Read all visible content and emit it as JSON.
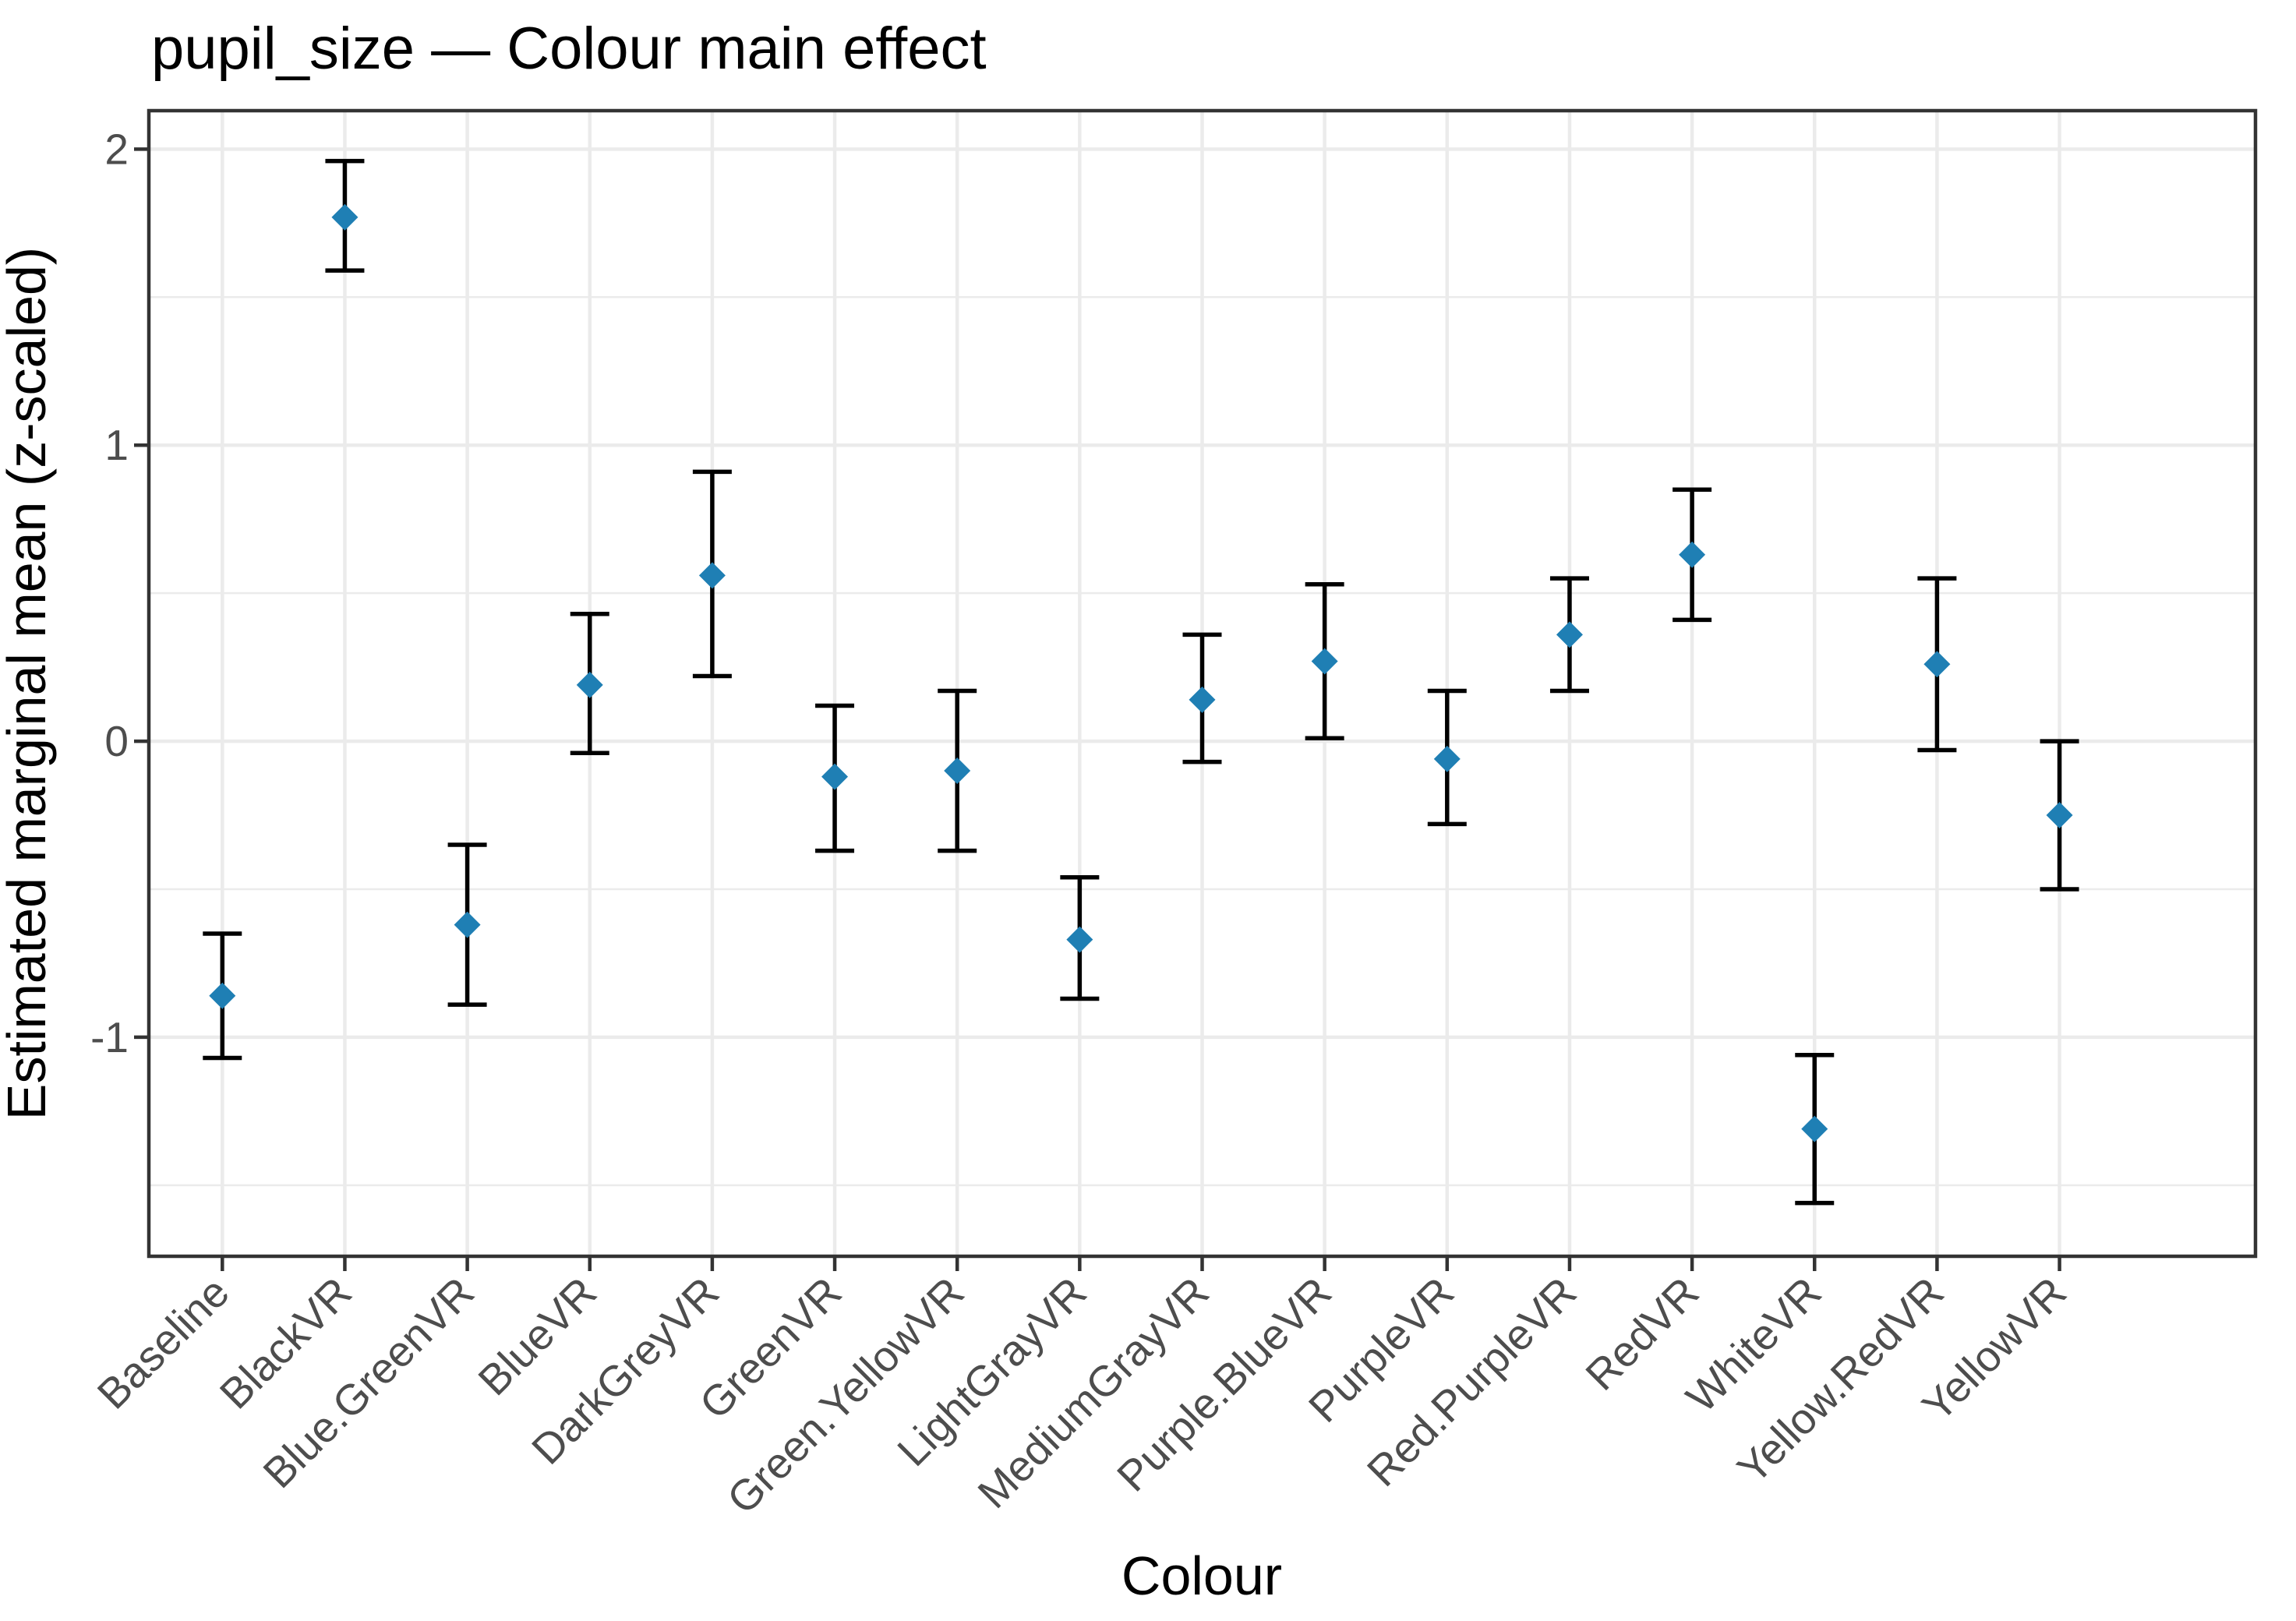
{
  "chart_data": {
    "type": "scatter",
    "subtype": "pointrange-errorbar",
    "title": "pupil_size — Colour main effect",
    "xlabel": "Colour",
    "ylabel": "Estimated marginal mean (z-scaled)",
    "categories": [
      "Baseline",
      "BlackVR",
      "Blue.GreenVR",
      "BlueVR",
      "DarkGreyVR",
      "GreenVR",
      "Green.YellowVR",
      "LightGrayVR",
      "MediumGrayVR",
      "Purple.BlueVR",
      "PurpleVR",
      "Red.PurpleVR",
      "RedVR",
      "WhiteVR",
      "Yellow.RedVR",
      "YellowVR"
    ],
    "series": [
      {
        "name": "emmean",
        "values": [
          -0.86,
          1.77,
          -0.62,
          0.19,
          0.56,
          -0.12,
          -0.1,
          -0.67,
          0.14,
          0.27,
          -0.06,
          0.36,
          0.63,
          -1.31,
          0.26,
          -0.25
        ]
      },
      {
        "name": "ci_lower",
        "values": [
          -1.07,
          1.59,
          -0.89,
          -0.04,
          0.22,
          -0.37,
          -0.37,
          -0.87,
          -0.07,
          0.01,
          -0.28,
          0.17,
          0.41,
          -1.56,
          -0.03,
          -0.5
        ]
      },
      {
        "name": "ci_upper",
        "values": [
          -0.65,
          1.96,
          -0.35,
          0.43,
          0.91,
          0.12,
          0.17,
          -0.46,
          0.36,
          0.53,
          0.17,
          0.55,
          0.85,
          -1.06,
          0.55,
          0.0
        ]
      }
    ],
    "ylim": [
      -1.74,
      2.13
    ],
    "yticks": [
      2,
      1,
      0,
      -1
    ],
    "ytick_labels": [
      "2",
      "1",
      "0",
      "-1"
    ],
    "yticks_minor": [
      1.5,
      0.5,
      -0.5,
      -1.5
    ],
    "grid": true,
    "legend": false,
    "marker_shape": "diamond",
    "point_color": "#1F7FB4",
    "errorbar_color": "#000000"
  },
  "colors": {
    "background": "#FFFFFF",
    "panel_background": "#FFFFFF",
    "grid_line": "#EBEBEB",
    "panel_border": "#333333",
    "tick_mark": "#333333",
    "tick_label": "#4D4D4D",
    "title_text": "#000000"
  }
}
